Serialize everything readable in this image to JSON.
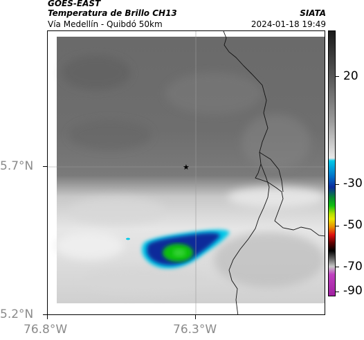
{
  "header": {
    "satellite": "GOES-EAST",
    "product": "Temperatura de Brillo CH13",
    "region": "Vía Medellín - Quibdó 50km",
    "agency": "SIATA",
    "timestamp": "2024-01-18 19:49"
  },
  "map": {
    "lat_ticks": [
      "5.7°N",
      "5.2°N"
    ],
    "lon_ticks": [
      "76.8°W",
      "76.3°W"
    ],
    "marker_icon": "star-marker-icon"
  },
  "colorbar": {
    "labels": [
      "20",
      "-30",
      "-50",
      "-70",
      "-90"
    ],
    "colors": {
      "warm_dark": "#1a1a1a",
      "warm_light": "#e8e8e8",
      "cyan": "#00c8e8",
      "blue": "#0a2a9a",
      "green": "#10c010",
      "yellow": "#e8e800",
      "red": "#e01010",
      "black": "#000000",
      "magenta": "#c040c0"
    }
  }
}
